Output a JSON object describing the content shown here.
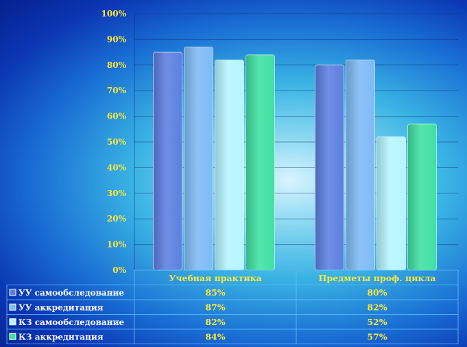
{
  "chart_data": {
    "type": "bar",
    "categories": [
      "Учебная практика",
      "Предметы проф. цикла"
    ],
    "series": [
      {
        "name": "УУ самообследование",
        "values": [
          85,
          80
        ],
        "labels": [
          "85%",
          "80%"
        ],
        "color": "#5c7fe0"
      },
      {
        "name": "УУ аккредитация",
        "values": [
          87,
          82
        ],
        "labels": [
          "87%",
          "82%"
        ],
        "color": "#7fbaf5"
      },
      {
        "name": "КЗ самообследование",
        "values": [
          82,
          52
        ],
        "labels": [
          "82%",
          "52%"
        ],
        "color": "#b5f5ff"
      },
      {
        "name": "КЗ аккредитация",
        "values": [
          84,
          57
        ],
        "labels": [
          "84%",
          "57%"
        ],
        "color": "#3fe0a2"
      }
    ],
    "ylim": [
      0,
      100
    ],
    "yticks": [
      "0%",
      "10%",
      "20%",
      "30%",
      "40%",
      "50%",
      "60%",
      "70%",
      "80%",
      "90%",
      "100%"
    ],
    "grid": true,
    "legend": "data-table"
  }
}
